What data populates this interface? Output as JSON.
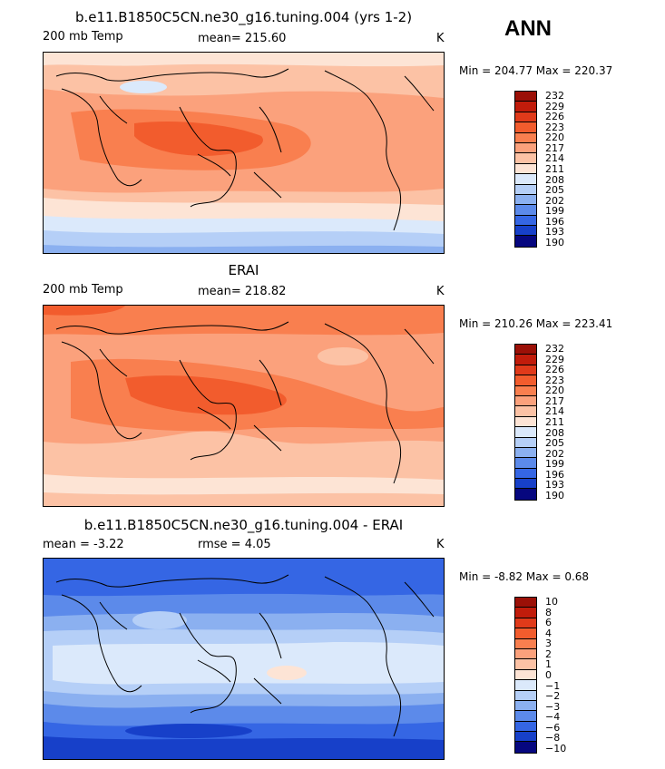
{
  "season": "ANN",
  "chart_data": [
    {
      "type": "heatmap",
      "title": "b.e11.B1850C5CN.ne30_g16.tuning.004 (yrs 1-2)",
      "left_label": "200 mb Temp",
      "stat_label": "mean=  215.60",
      "units": "K",
      "min_max": "Min = 204.77 Max = 220.37",
      "levels": [
        "232",
        "229",
        "226",
        "223",
        "220",
        "217",
        "214",
        "211",
        "208",
        "205",
        "202",
        "199",
        "196",
        "193",
        "190"
      ],
      "colors": [
        "#9b1007",
        "#c11c0b",
        "#e03a1a",
        "#f25c2d",
        "#f97f4f",
        "#fba17c",
        "#fcc2a5",
        "#fde4d5",
        "#dbe9fb",
        "#b5cff7",
        "#8bb0f0",
        "#5c8aea",
        "#3566e4",
        "#1740c9",
        "#06077f"
      ]
    },
    {
      "type": "heatmap",
      "title": "ERAI",
      "left_label": "200 mb Temp",
      "stat_label": "mean=  218.82",
      "units": "K",
      "min_max": "Min = 210.26 Max = 223.41",
      "levels": [
        "232",
        "229",
        "226",
        "223",
        "220",
        "217",
        "214",
        "211",
        "208",
        "205",
        "202",
        "199",
        "196",
        "193",
        "190"
      ],
      "colors": [
        "#9b1007",
        "#c11c0b",
        "#e03a1a",
        "#f25c2d",
        "#f97f4f",
        "#fba17c",
        "#fcc2a5",
        "#fde4d5",
        "#dbe9fb",
        "#b5cff7",
        "#8bb0f0",
        "#5c8aea",
        "#3566e4",
        "#1740c9",
        "#06077f"
      ]
    },
    {
      "type": "heatmap",
      "title": "b.e11.B1850C5CN.ne30_g16.tuning.004 - ERAI",
      "left_label": "mean =   -3.22",
      "stat_label": "rmse =    4.05",
      "units": "K",
      "min_max": "Min =  -8.82 Max =    0.68",
      "levels": [
        "10",
        "8",
        "6",
        "4",
        "3",
        "2",
        "1",
        "0",
        "−1",
        "−2",
        "−3",
        "−4",
        "−6",
        "−8",
        "−10"
      ],
      "colors": [
        "#9b1007",
        "#c11c0b",
        "#e03a1a",
        "#f25c2d",
        "#f97f4f",
        "#fba17c",
        "#fcc2a5",
        "#fde4d5",
        "#dbe9fb",
        "#b5cff7",
        "#8bb0f0",
        "#5c8aea",
        "#3566e4",
        "#1740c9",
        "#06077f"
      ]
    }
  ]
}
